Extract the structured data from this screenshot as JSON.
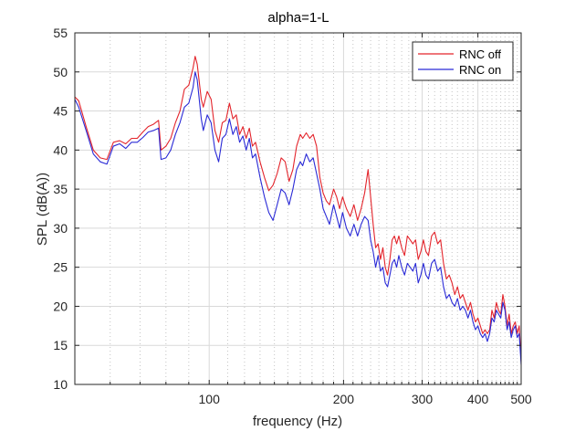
{
  "chart_data": {
    "type": "line",
    "title": "alpha=1-L",
    "xlabel": "frequency (Hz)",
    "ylabel": "SPL (dB(A))",
    "xscale": "log",
    "xlim": [
      50,
      500
    ],
    "ylim": [
      10,
      55
    ],
    "x_ticks": [
      100,
      200,
      300,
      400,
      500
    ],
    "x_tick_labels": [
      "100",
      "200",
      "300",
      "400",
      "500"
    ],
    "y_ticks": [
      10,
      15,
      20,
      25,
      30,
      35,
      40,
      45,
      50,
      55
    ],
    "y_tick_labels": [
      "10",
      "15",
      "20",
      "25",
      "30",
      "35",
      "40",
      "45",
      "50",
      "55"
    ],
    "grid": true,
    "legend_position": "top-right",
    "series": [
      {
        "name": "RNC off",
        "color": "#e3242b",
        "points": [
          [
            50,
            46.8
          ],
          [
            51,
            46.3
          ],
          [
            53,
            43.0
          ],
          [
            55,
            40.0
          ],
          [
            57,
            39.0
          ],
          [
            59,
            38.8
          ],
          [
            61,
            41.0
          ],
          [
            63,
            41.2
          ],
          [
            65,
            40.8
          ],
          [
            67,
            41.5
          ],
          [
            69,
            41.5
          ],
          [
            71,
            42.3
          ],
          [
            73,
            43.0
          ],
          [
            75,
            43.3
          ],
          [
            77,
            43.8
          ],
          [
            78,
            40.0
          ],
          [
            80,
            40.5
          ],
          [
            82,
            41.5
          ],
          [
            84,
            43.5
          ],
          [
            86,
            45.0
          ],
          [
            88,
            47.8
          ],
          [
            90,
            48.3
          ],
          [
            92,
            50.5
          ],
          [
            93,
            52.0
          ],
          [
            94,
            51.0
          ],
          [
            96,
            46.5
          ],
          [
            97,
            45.5
          ],
          [
            99,
            47.5
          ],
          [
            101,
            46.5
          ],
          [
            103,
            42.5
          ],
          [
            105,
            41.0
          ],
          [
            107,
            43.5
          ],
          [
            109,
            43.8
          ],
          [
            111,
            46.0
          ],
          [
            113,
            44.0
          ],
          [
            115,
            44.5
          ],
          [
            117,
            42.0
          ],
          [
            119,
            43.0
          ],
          [
            121,
            41.5
          ],
          [
            123,
            42.8
          ],
          [
            125,
            40.5
          ],
          [
            127,
            41.0
          ],
          [
            130,
            38.5
          ],
          [
            133,
            36.5
          ],
          [
            136,
            34.8
          ],
          [
            139,
            35.5
          ],
          [
            142,
            37.0
          ],
          [
            145,
            39.0
          ],
          [
            148,
            38.5
          ],
          [
            151,
            36.0
          ],
          [
            154,
            37.5
          ],
          [
            157,
            40.5
          ],
          [
            160,
            42.0
          ],
          [
            162,
            41.5
          ],
          [
            165,
            42.2
          ],
          [
            168,
            41.5
          ],
          [
            171,
            42.0
          ],
          [
            174,
            40.5
          ],
          [
            177,
            36.5
          ],
          [
            180,
            34.5
          ],
          [
            183,
            33.5
          ],
          [
            186,
            33.0
          ],
          [
            190,
            35.0
          ],
          [
            193,
            34.0
          ],
          [
            196,
            32.5
          ],
          [
            199,
            34.0
          ],
          [
            203,
            32.5
          ],
          [
            207,
            31.5
          ],
          [
            211,
            33.0
          ],
          [
            215,
            31.0
          ],
          [
            219,
            32.5
          ],
          [
            223,
            34.5
          ],
          [
            227,
            37.5
          ],
          [
            230,
            34.0
          ],
          [
            233,
            30.5
          ],
          [
            236,
            27.5
          ],
          [
            239,
            28.0
          ],
          [
            242,
            26.0
          ],
          [
            245,
            27.5
          ],
          [
            248,
            25.0
          ],
          [
            251,
            24.0
          ],
          [
            254,
            26.0
          ],
          [
            257,
            28.5
          ],
          [
            260,
            29.0
          ],
          [
            263,
            28.0
          ],
          [
            266,
            29.0
          ],
          [
            270,
            27.5
          ],
          [
            274,
            26.5
          ],
          [
            278,
            29.0
          ],
          [
            282,
            28.5
          ],
          [
            286,
            28.0
          ],
          [
            290,
            28.5
          ],
          [
            294,
            26.0
          ],
          [
            298,
            27.0
          ],
          [
            302,
            28.5
          ],
          [
            306,
            27.0
          ],
          [
            310,
            26.5
          ],
          [
            315,
            29.0
          ],
          [
            320,
            29.5
          ],
          [
            325,
            28.0
          ],
          [
            330,
            28.5
          ],
          [
            335,
            25.5
          ],
          [
            340,
            23.5
          ],
          [
            345,
            24.0
          ],
          [
            350,
            23.0
          ],
          [
            355,
            21.5
          ],
          [
            360,
            22.5
          ],
          [
            365,
            21.0
          ],
          [
            370,
            21.5
          ],
          [
            375,
            20.5
          ],
          [
            380,
            19.5
          ],
          [
            385,
            20.5
          ],
          [
            390,
            19.0
          ],
          [
            395,
            18.0
          ],
          [
            400,
            18.5
          ],
          [
            405,
            17.5
          ],
          [
            410,
            16.5
          ],
          [
            415,
            17.0
          ],
          [
            420,
            16.5
          ],
          [
            425,
            17.0
          ],
          [
            430,
            19.5
          ],
          [
            435,
            18.5
          ],
          [
            440,
            20.5
          ],
          [
            445,
            19.5
          ],
          [
            450,
            19.0
          ],
          [
            455,
            21.5
          ],
          [
            460,
            20.0
          ],
          [
            465,
            17.5
          ],
          [
            470,
            19.0
          ],
          [
            475,
            16.5
          ],
          [
            480,
            17.5
          ],
          [
            485,
            18.0
          ],
          [
            490,
            16.5
          ],
          [
            495,
            17.5
          ],
          [
            500,
            13.0
          ]
        ]
      },
      {
        "name": "RNC on",
        "color": "#2a2ad6",
        "points": [
          [
            50,
            46.5
          ],
          [
            51,
            45.5
          ],
          [
            53,
            42.5
          ],
          [
            55,
            39.5
          ],
          [
            57,
            38.5
          ],
          [
            59,
            38.2
          ],
          [
            61,
            40.5
          ],
          [
            63,
            40.8
          ],
          [
            65,
            40.2
          ],
          [
            67,
            41.0
          ],
          [
            69,
            41.0
          ],
          [
            71,
            41.6
          ],
          [
            73,
            42.3
          ],
          [
            75,
            42.5
          ],
          [
            77,
            42.8
          ],
          [
            78,
            38.8
          ],
          [
            80,
            39.0
          ],
          [
            82,
            40.0
          ],
          [
            84,
            42.0
          ],
          [
            86,
            43.5
          ],
          [
            88,
            45.5
          ],
          [
            90,
            46.0
          ],
          [
            92,
            48.0
          ],
          [
            93,
            50.0
          ],
          [
            94,
            49.0
          ],
          [
            96,
            44.0
          ],
          [
            97,
            42.5
          ],
          [
            99,
            44.5
          ],
          [
            101,
            43.5
          ],
          [
            103,
            40.0
          ],
          [
            105,
            38.5
          ],
          [
            107,
            41.5
          ],
          [
            109,
            42.0
          ],
          [
            111,
            44.0
          ],
          [
            113,
            42.0
          ],
          [
            115,
            43.0
          ],
          [
            117,
            41.0
          ],
          [
            119,
            41.8
          ],
          [
            121,
            40.0
          ],
          [
            123,
            41.5
          ],
          [
            125,
            39.0
          ],
          [
            127,
            39.5
          ],
          [
            130,
            36.5
          ],
          [
            133,
            34.0
          ],
          [
            136,
            32.0
          ],
          [
            139,
            31.0
          ],
          [
            142,
            33.0
          ],
          [
            145,
            35.0
          ],
          [
            148,
            34.5
          ],
          [
            151,
            33.0
          ],
          [
            154,
            35.0
          ],
          [
            157,
            37.5
          ],
          [
            160,
            38.5
          ],
          [
            162,
            38.0
          ],
          [
            165,
            39.5
          ],
          [
            168,
            38.5
          ],
          [
            171,
            39.0
          ],
          [
            174,
            37.0
          ],
          [
            177,
            35.0
          ],
          [
            180,
            32.5
          ],
          [
            183,
            31.5
          ],
          [
            186,
            30.5
          ],
          [
            190,
            33.0
          ],
          [
            193,
            31.5
          ],
          [
            196,
            30.0
          ],
          [
            199,
            32.0
          ],
          [
            203,
            30.0
          ],
          [
            207,
            29.0
          ],
          [
            211,
            30.5
          ],
          [
            215,
            29.0
          ],
          [
            219,
            30.5
          ],
          [
            223,
            31.5
          ],
          [
            227,
            31.0
          ],
          [
            230,
            28.5
          ],
          [
            233,
            27.0
          ],
          [
            236,
            25.0
          ],
          [
            239,
            26.5
          ],
          [
            242,
            24.5
          ],
          [
            245,
            25.0
          ],
          [
            248,
            23.0
          ],
          [
            251,
            22.5
          ],
          [
            254,
            24.0
          ],
          [
            257,
            25.5
          ],
          [
            260,
            26.0
          ],
          [
            263,
            25.0
          ],
          [
            266,
            26.5
          ],
          [
            270,
            25.0
          ],
          [
            274,
            24.0
          ],
          [
            278,
            25.5
          ],
          [
            282,
            25.0
          ],
          [
            286,
            24.5
          ],
          [
            290,
            25.5
          ],
          [
            294,
            23.0
          ],
          [
            298,
            24.0
          ],
          [
            302,
            25.5
          ],
          [
            306,
            24.0
          ],
          [
            310,
            23.5
          ],
          [
            315,
            25.5
          ],
          [
            320,
            26.0
          ],
          [
            325,
            24.5
          ],
          [
            330,
            25.0
          ],
          [
            335,
            22.5
          ],
          [
            340,
            21.0
          ],
          [
            345,
            21.5
          ],
          [
            350,
            20.5
          ],
          [
            355,
            20.0
          ],
          [
            360,
            21.0
          ],
          [
            365,
            19.5
          ],
          [
            370,
            20.0
          ],
          [
            375,
            19.5
          ],
          [
            380,
            18.5
          ],
          [
            385,
            19.5
          ],
          [
            390,
            18.0
          ],
          [
            395,
            17.0
          ],
          [
            400,
            17.5
          ],
          [
            405,
            16.5
          ],
          [
            410,
            16.0
          ],
          [
            415,
            16.5
          ],
          [
            420,
            15.5
          ],
          [
            425,
            16.5
          ],
          [
            430,
            18.5
          ],
          [
            435,
            18.0
          ],
          [
            440,
            19.5
          ],
          [
            445,
            19.0
          ],
          [
            450,
            18.5
          ],
          [
            455,
            20.5
          ],
          [
            460,
            19.5
          ],
          [
            465,
            17.0
          ],
          [
            470,
            18.0
          ],
          [
            475,
            16.0
          ],
          [
            480,
            17.0
          ],
          [
            485,
            17.5
          ],
          [
            490,
            16.0
          ],
          [
            495,
            16.5
          ],
          [
            500,
            12.5
          ]
        ]
      }
    ]
  }
}
